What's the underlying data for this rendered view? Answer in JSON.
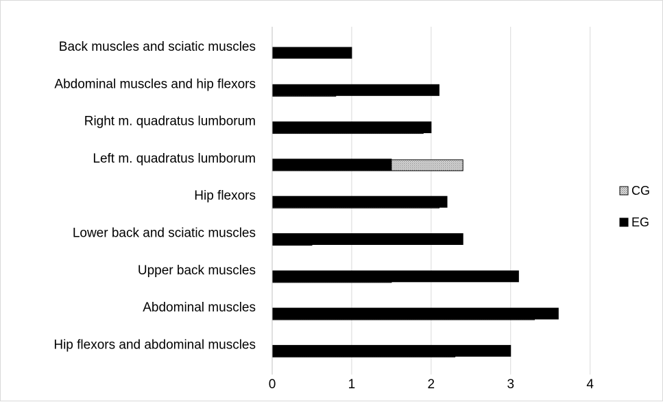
{
  "chart_data": {
    "type": "bar",
    "orientation": "horizontal",
    "categories": [
      "Back muscles and sciatic muscles",
      "Abdominal muscles and hip flexors",
      "Right m. quadratus lumborum",
      "Left m. quadratus lumborum",
      "Hip flexors",
      "Lower back and sciatic muscles",
      "Upper back muscles",
      "Abdominal muscles",
      "Hip flexors and abdominal muscles"
    ],
    "series": [
      {
        "name": "CG",
        "color": "#c8c8c8",
        "pattern": "dotted",
        "values": [
          0,
          0.8,
          1.9,
          2.4,
          2.1,
          0.5,
          1.5,
          3.3,
          2.3
        ]
      },
      {
        "name": "EG",
        "color": "#000000",
        "pattern": "solid",
        "values": [
          1.0,
          2.1,
          2.0,
          1.5,
          2.2,
          2.4,
          3.1,
          3.6,
          3.0
        ]
      }
    ],
    "xlim": [
      0,
      4.9
    ],
    "xticks": [
      0,
      1,
      2,
      3,
      4
    ],
    "grid": "vertical",
    "legend_position": "right",
    "title": "",
    "xlabel": "",
    "ylabel": ""
  }
}
